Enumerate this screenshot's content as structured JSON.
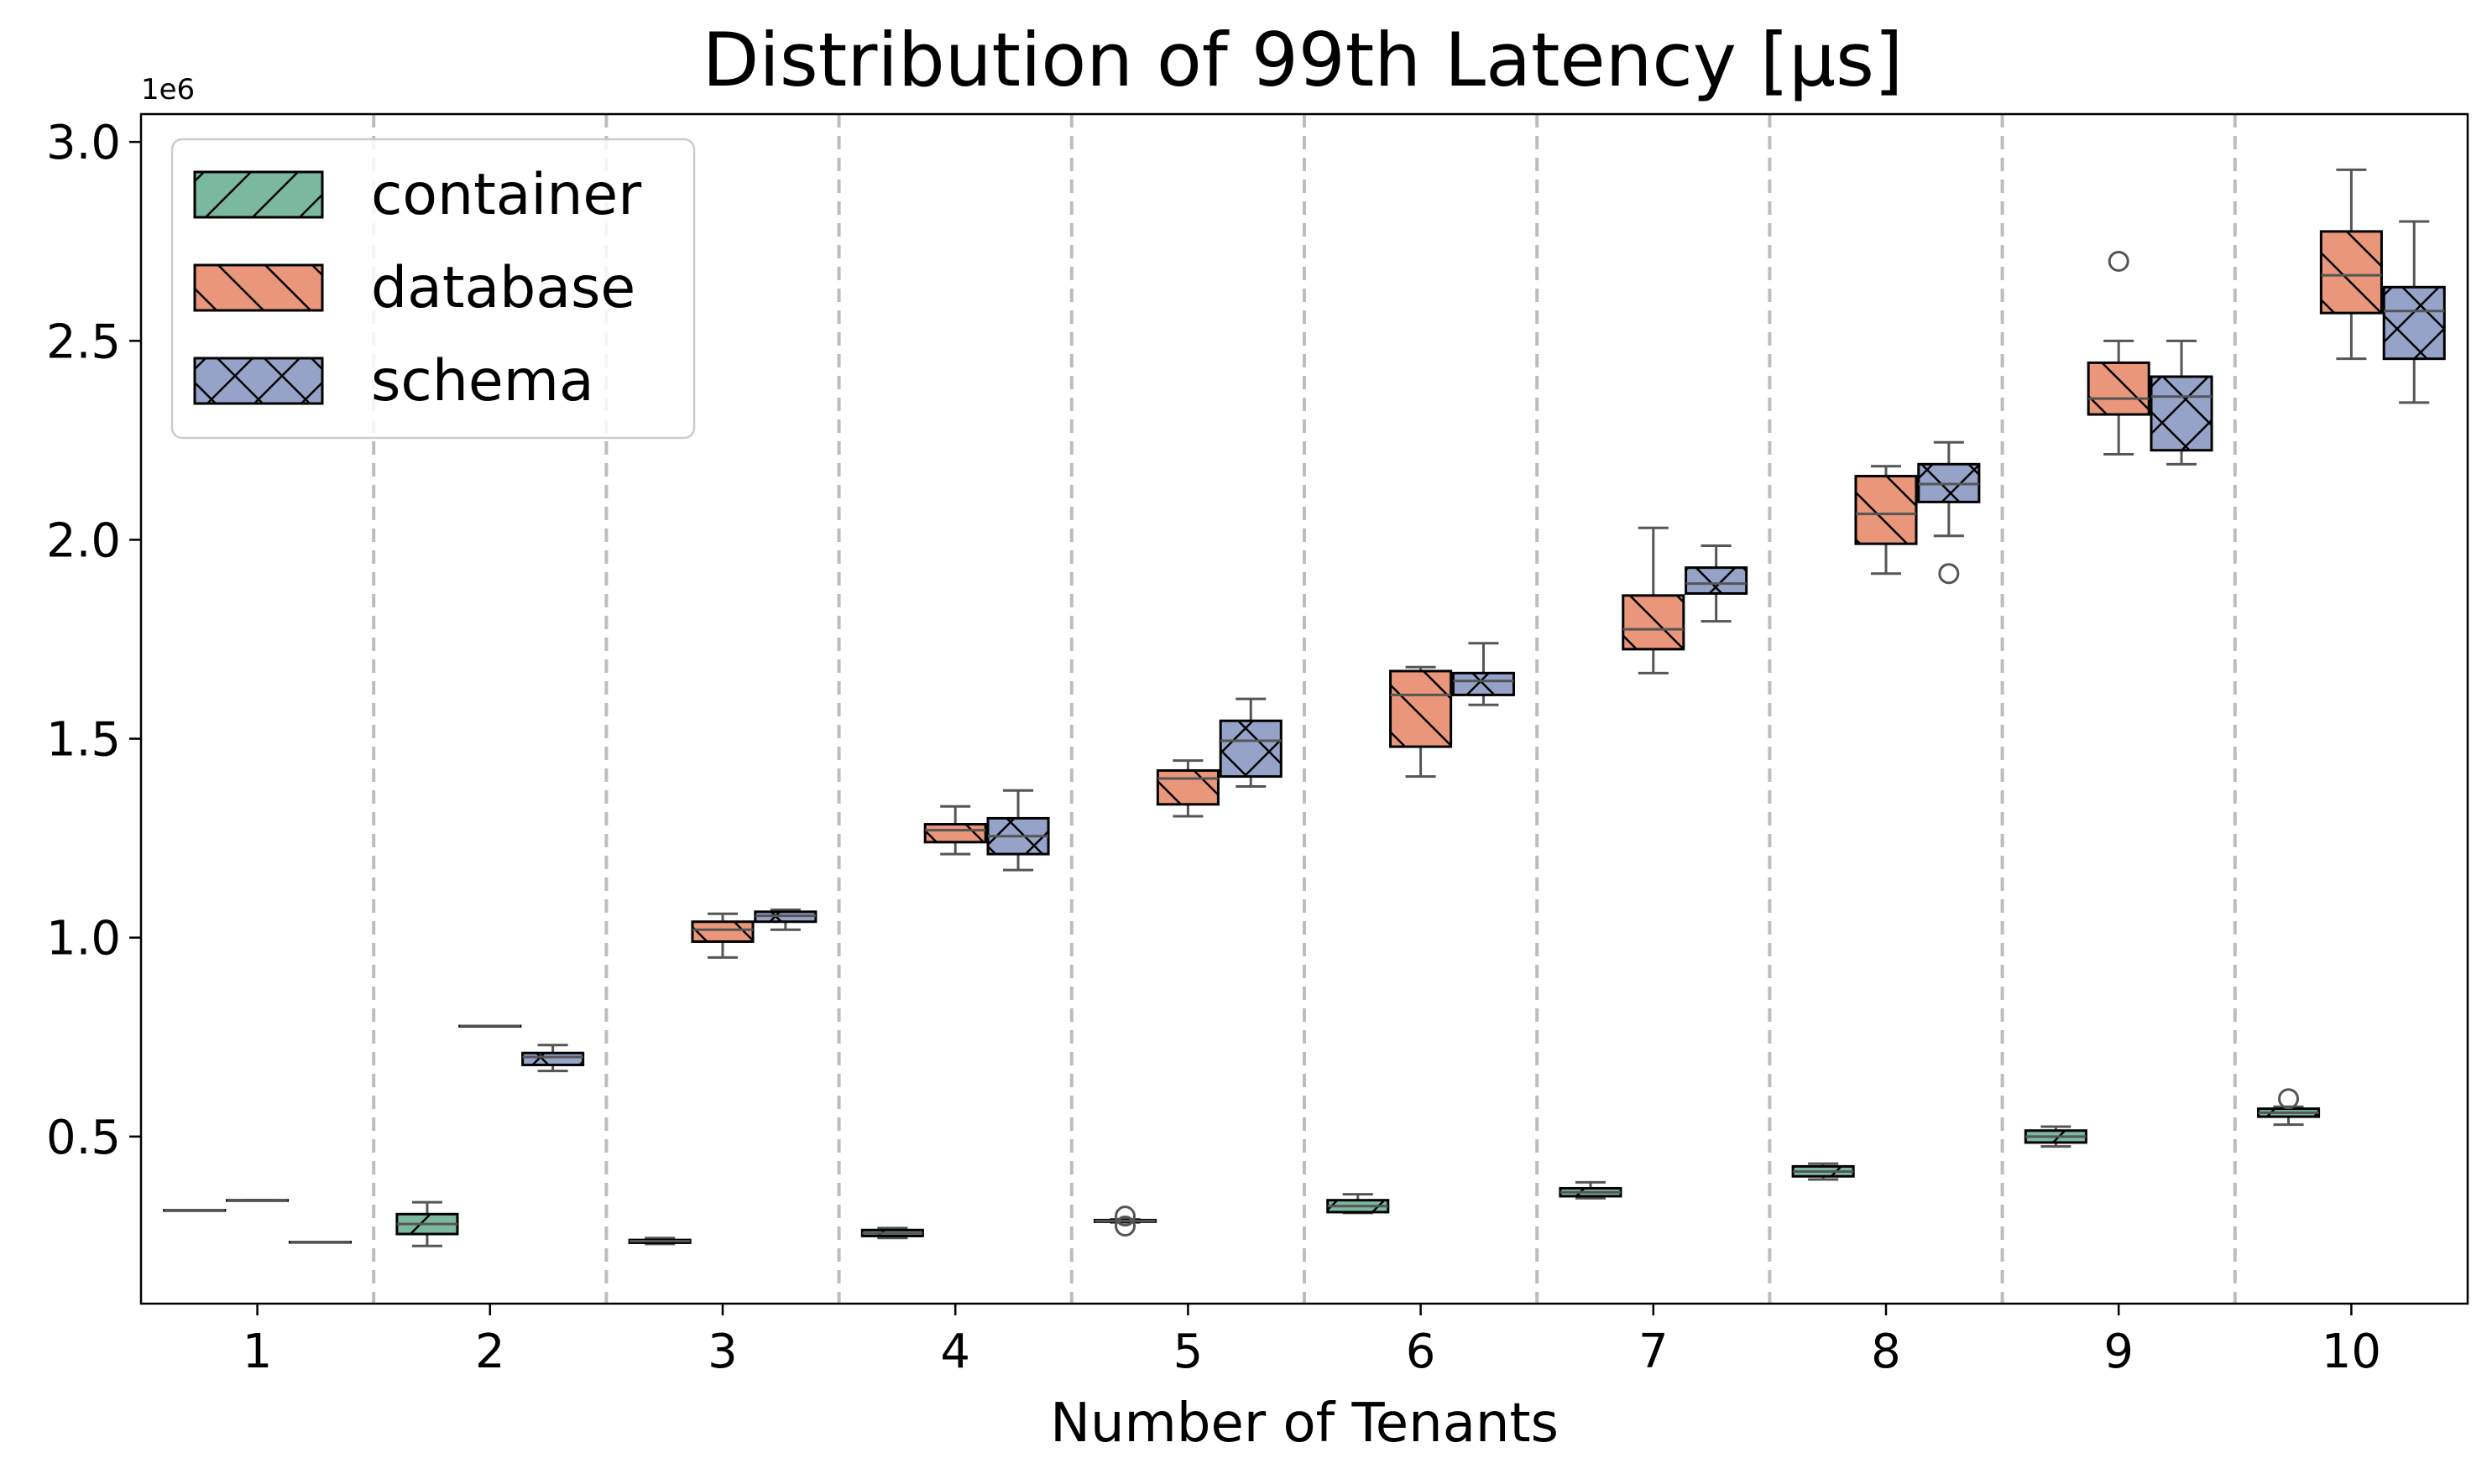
{
  "chart_data": {
    "type": "box",
    "title": "Distribution of 99th Latency [μs]",
    "xlabel": "Number of Tenants",
    "ylabel": "",
    "y_offset_label": "1e6",
    "y_scale": 1000000,
    "ylim": [
      0.08,
      3.07
    ],
    "yticks": [
      0.5,
      1.0,
      1.5,
      2.0,
      2.5,
      3.0
    ],
    "ytick_labels": [
      "0.5",
      "1.0",
      "1.5",
      "2.0",
      "2.5",
      "3.0"
    ],
    "categories": [
      "1",
      "2",
      "3",
      "4",
      "5",
      "6",
      "7",
      "8",
      "9",
      "10"
    ],
    "separators": "dashed-gray-between-groups",
    "legend_position": "top-left",
    "series": [
      {
        "name": "container",
        "color": "#7bb8a0",
        "hatch": "forward-diagonal",
        "boxes": [
          {
            "whislo": 0.315,
            "q1": 0.315,
            "med": 0.315,
            "q3": 0.315,
            "whishi": 0.315,
            "fliers": []
          },
          {
            "whislo": 0.225,
            "q1": 0.255,
            "med": 0.28,
            "q3": 0.305,
            "whishi": 0.335,
            "fliers": []
          },
          {
            "whislo": 0.23,
            "q1": 0.233,
            "med": 0.237,
            "q3": 0.24,
            "whishi": 0.245,
            "fliers": []
          },
          {
            "whislo": 0.245,
            "q1": 0.25,
            "med": 0.257,
            "q3": 0.265,
            "whishi": 0.27,
            "fliers": []
          },
          {
            "whislo": 0.284,
            "q1": 0.286,
            "med": 0.288,
            "q3": 0.29,
            "whishi": 0.292,
            "fliers": [
              0.3,
              0.275
            ]
          },
          {
            "whislo": 0.308,
            "q1": 0.31,
            "med": 0.325,
            "q3": 0.34,
            "whishi": 0.355,
            "fliers": []
          },
          {
            "whislo": 0.345,
            "q1": 0.35,
            "med": 0.36,
            "q3": 0.37,
            "whishi": 0.385,
            "fliers": []
          },
          {
            "whislo": 0.392,
            "q1": 0.4,
            "med": 0.412,
            "q3": 0.425,
            "whishi": 0.432,
            "fliers": []
          },
          {
            "whislo": 0.475,
            "q1": 0.485,
            "med": 0.5,
            "q3": 0.515,
            "whishi": 0.525,
            "fliers": []
          },
          {
            "whislo": 0.53,
            "q1": 0.55,
            "med": 0.56,
            "q3": 0.57,
            "whishi": 0.575,
            "fliers": [
              0.595
            ]
          }
        ]
      },
      {
        "name": "database",
        "color": "#e9967a",
        "hatch": "back-diagonal",
        "boxes": [
          {
            "whislo": 0.34,
            "q1": 0.34,
            "med": 0.34,
            "q3": 0.34,
            "whishi": 0.34,
            "fliers": []
          },
          {
            "whislo": 0.778,
            "q1": 0.778,
            "med": 0.778,
            "q3": 0.778,
            "whishi": 0.778,
            "fliers": []
          },
          {
            "whislo": 0.95,
            "q1": 0.99,
            "med": 1.02,
            "q3": 1.04,
            "whishi": 1.06,
            "fliers": []
          },
          {
            "whislo": 1.21,
            "q1": 1.24,
            "med": 1.27,
            "q3": 1.285,
            "whishi": 1.33,
            "fliers": []
          },
          {
            "whislo": 1.305,
            "q1": 1.335,
            "med": 1.4,
            "q3": 1.42,
            "whishi": 1.445,
            "fliers": []
          },
          {
            "whislo": 1.405,
            "q1": 1.48,
            "med": 1.61,
            "q3": 1.67,
            "whishi": 1.68,
            "fliers": []
          },
          {
            "whislo": 1.665,
            "q1": 1.725,
            "med": 1.775,
            "q3": 1.86,
            "whishi": 2.03,
            "fliers": []
          },
          {
            "whislo": 1.915,
            "q1": 1.99,
            "med": 2.065,
            "q3": 2.16,
            "whishi": 2.185,
            "fliers": []
          },
          {
            "whislo": 2.215,
            "q1": 2.315,
            "med": 2.355,
            "q3": 2.445,
            "whishi": 2.5,
            "fliers": [
              2.7
            ]
          },
          {
            "whislo": 2.455,
            "q1": 2.57,
            "med": 2.665,
            "q3": 2.775,
            "whishi": 2.93,
            "fliers": []
          }
        ]
      },
      {
        "name": "schema",
        "color": "#95a3c9",
        "hatch": "cross",
        "boxes": [
          {
            "whislo": 0.235,
            "q1": 0.235,
            "med": 0.235,
            "q3": 0.235,
            "whishi": 0.235,
            "fliers": []
          },
          {
            "whislo": 0.665,
            "q1": 0.68,
            "med": 0.7,
            "q3": 0.71,
            "whishi": 0.73,
            "fliers": []
          },
          {
            "whislo": 1.02,
            "q1": 1.04,
            "med": 1.055,
            "q3": 1.065,
            "whishi": 1.07,
            "fliers": []
          },
          {
            "whislo": 1.17,
            "q1": 1.21,
            "med": 1.255,
            "q3": 1.3,
            "whishi": 1.37,
            "fliers": []
          },
          {
            "whislo": 1.38,
            "q1": 1.405,
            "med": 1.495,
            "q3": 1.545,
            "whishi": 1.6,
            "fliers": []
          },
          {
            "whislo": 1.585,
            "q1": 1.61,
            "med": 1.645,
            "q3": 1.665,
            "whishi": 1.74,
            "fliers": []
          },
          {
            "whislo": 1.795,
            "q1": 1.865,
            "med": 1.89,
            "q3": 1.93,
            "whishi": 1.985,
            "fliers": []
          },
          {
            "whislo": 2.01,
            "q1": 2.095,
            "med": 2.14,
            "q3": 2.19,
            "whishi": 2.245,
            "fliers": [
              1.915
            ]
          },
          {
            "whislo": 2.19,
            "q1": 2.225,
            "med": 2.36,
            "q3": 2.41,
            "whishi": 2.5,
            "fliers": []
          },
          {
            "whislo": 2.345,
            "q1": 2.455,
            "med": 2.575,
            "q3": 2.635,
            "whishi": 2.8,
            "fliers": []
          }
        ]
      }
    ]
  }
}
